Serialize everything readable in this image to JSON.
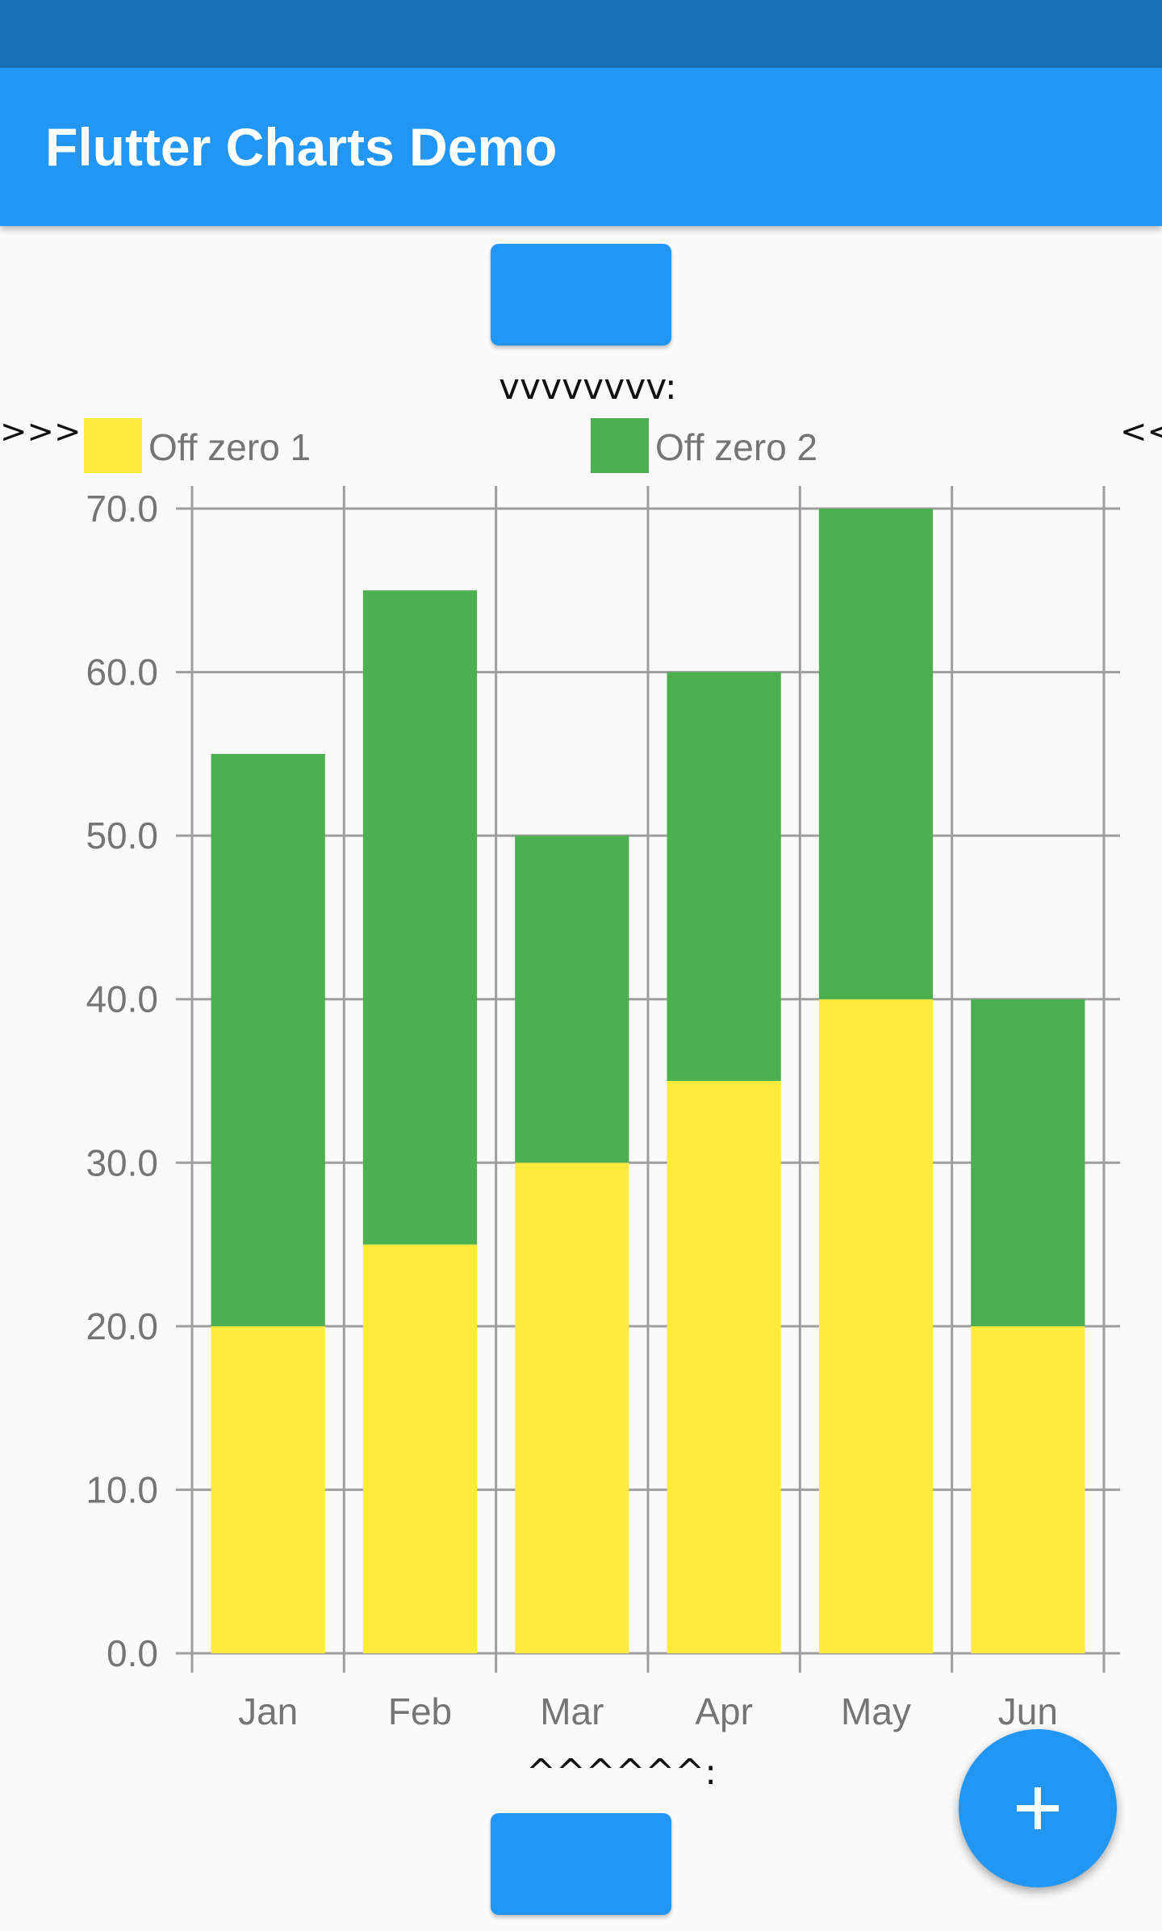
{
  "app_bar": {
    "title": "Flutter Charts Demo"
  },
  "markers": {
    "top": "vvvvvvvv:",
    "left": ">>>",
    "right": "<<",
    "bottom": "^^^^^^:"
  },
  "fab": {
    "icon": "plus-icon"
  },
  "colors": {
    "primary": "#2196f3",
    "status_bar": "#1b6fb8",
    "series1": "#ffeb3b",
    "series2": "#4caf50",
    "grid": "#9e9e9e",
    "tick_label": "#757575"
  },
  "chart_data": {
    "type": "bar",
    "stacked": true,
    "categories": [
      "Jan",
      "Feb",
      "Mar",
      "Apr",
      "May",
      "Jun"
    ],
    "series": [
      {
        "name": "Off zero 1",
        "color": "#ffeb3b",
        "values": [
          20,
          25,
          30,
          35,
          40,
          20
        ]
      },
      {
        "name": "Off zero 2",
        "color": "#4caf50",
        "values": [
          35,
          40,
          20,
          25,
          30,
          20
        ]
      }
    ],
    "y_ticks": [
      "0.0",
      "10.0",
      "20.0",
      "30.0",
      "40.0",
      "50.0",
      "60.0",
      "70.0"
    ],
    "ylim": [
      0,
      70
    ],
    "grid": true,
    "legend_position": "top"
  }
}
